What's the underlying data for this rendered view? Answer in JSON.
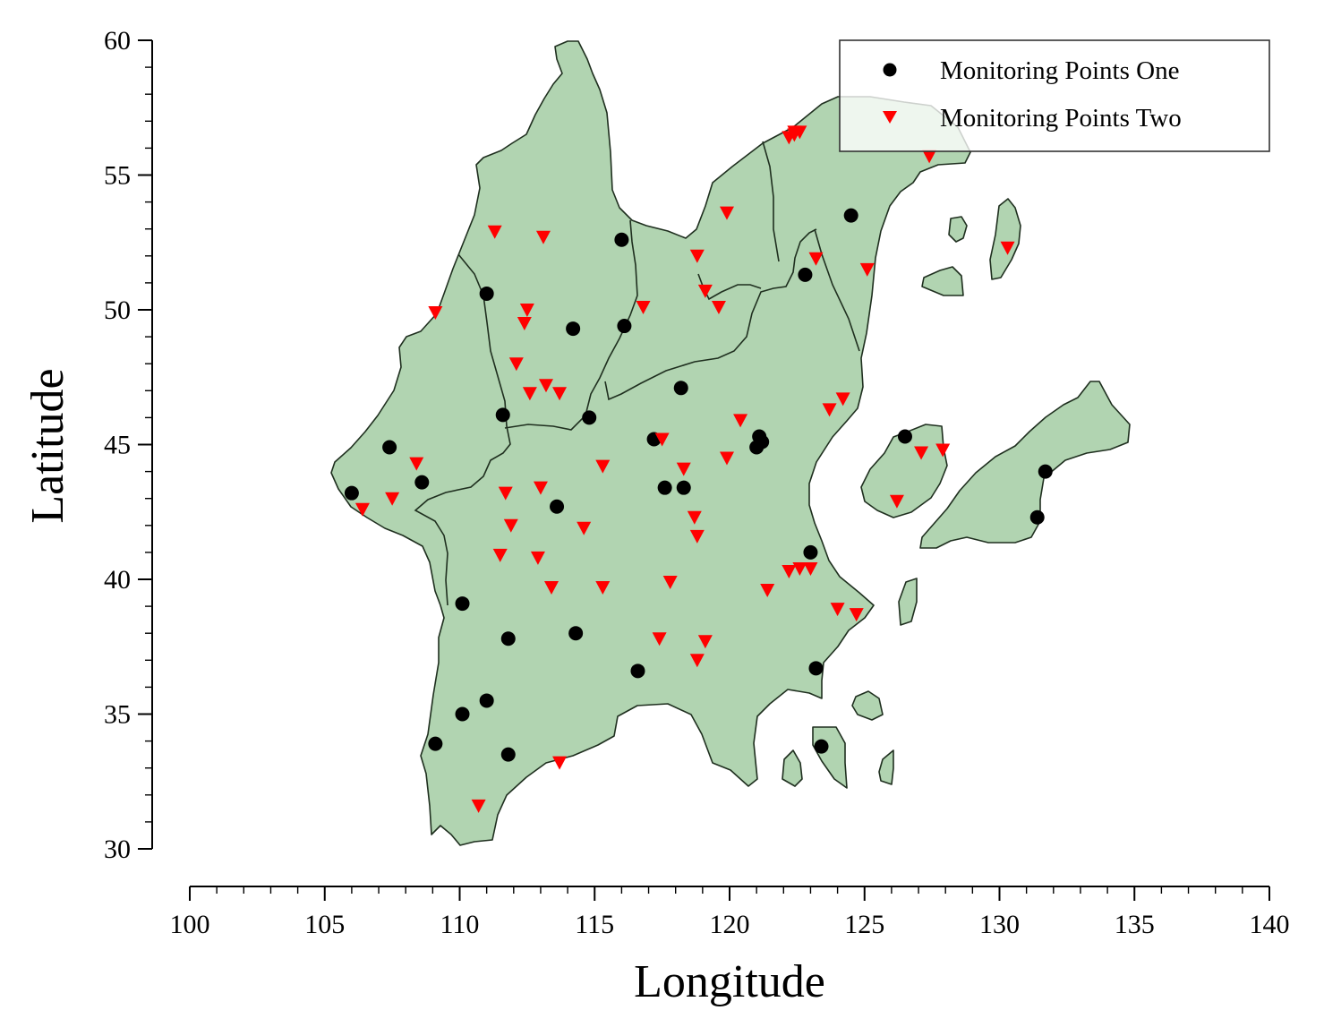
{
  "chart_data": {
    "type": "scatter",
    "xlabel": "Longitude",
    "ylabel": "Latitude",
    "xlim": [
      100,
      140
    ],
    "ylim": [
      30,
      60
    ],
    "x_ticks": [
      100,
      105,
      110,
      115,
      120,
      125,
      130,
      135,
      140
    ],
    "y_ticks": [
      30,
      35,
      40,
      45,
      50,
      55,
      60
    ],
    "grid": false,
    "legend_position": "top-right",
    "land_color": "#b1d4b1",
    "series": [
      {
        "name": "Monitoring Points One",
        "marker": "circle",
        "color": "#000000",
        "x": [
          106.0,
          107.4,
          108.6,
          111.0,
          111.6,
          114.2,
          114.8,
          116.0,
          116.1,
          117.2,
          117.6,
          118.2,
          118.3,
          113.6,
          110.1,
          111.8,
          114.3,
          116.6,
          110.1,
          111.0,
          109.1,
          111.8,
          121.0,
          121.2,
          121.1,
          122.8,
          124.5,
          126.5,
          123.0,
          123.2,
          123.4,
          131.7,
          131.4
        ],
        "y": [
          43.2,
          44.9,
          43.6,
          50.6,
          46.1,
          49.3,
          46.0,
          52.6,
          49.4,
          45.2,
          43.4,
          47.1,
          43.4,
          42.7,
          39.1,
          37.8,
          38.0,
          36.6,
          35.0,
          35.5,
          33.9,
          33.5,
          44.9,
          45.1,
          45.3,
          51.3,
          53.5,
          45.3,
          41.0,
          36.7,
          33.8,
          44.0,
          42.3
        ]
      },
      {
        "name": "Monitoring Points Two",
        "marker": "triangle-down",
        "color": "#ff0000",
        "x": [
          106.4,
          107.5,
          108.4,
          109.1,
          111.3,
          113.1,
          112.5,
          112.4,
          112.1,
          113.2,
          112.6,
          113.7,
          111.7,
          113.0,
          111.9,
          111.5,
          112.9,
          113.4,
          114.6,
          115.3,
          115.3,
          116.8,
          118.8,
          119.1,
          119.6,
          119.9,
          117.5,
          118.3,
          120.4,
          119.9,
          118.7,
          118.8,
          117.8,
          117.4,
          119.1,
          118.8,
          122.2,
          122.6,
          122.4,
          122.4,
          123.2,
          125.1,
          127.4,
          124.2,
          123.7,
          121.4,
          122.2,
          122.6,
          123.0,
          124.0,
          124.7,
          126.2,
          127.1,
          127.9,
          130.3,
          113.7,
          110.7
        ],
        "y": [
          42.6,
          43.0,
          44.3,
          49.9,
          52.9,
          52.7,
          50.0,
          49.5,
          48.0,
          47.2,
          46.9,
          46.9,
          43.2,
          43.4,
          42.0,
          40.9,
          40.8,
          39.7,
          41.9,
          39.7,
          44.2,
          50.1,
          52.0,
          50.7,
          50.1,
          53.6,
          45.2,
          44.1,
          45.9,
          44.5,
          42.3,
          41.6,
          39.9,
          37.8,
          37.7,
          37.0,
          56.4,
          56.6,
          56.6,
          56.5,
          51.9,
          51.5,
          55.7,
          46.7,
          46.3,
          39.6,
          40.3,
          40.4,
          40.4,
          38.9,
          38.7,
          42.9,
          44.7,
          44.8,
          52.3,
          33.2,
          31.6
        ]
      }
    ]
  }
}
